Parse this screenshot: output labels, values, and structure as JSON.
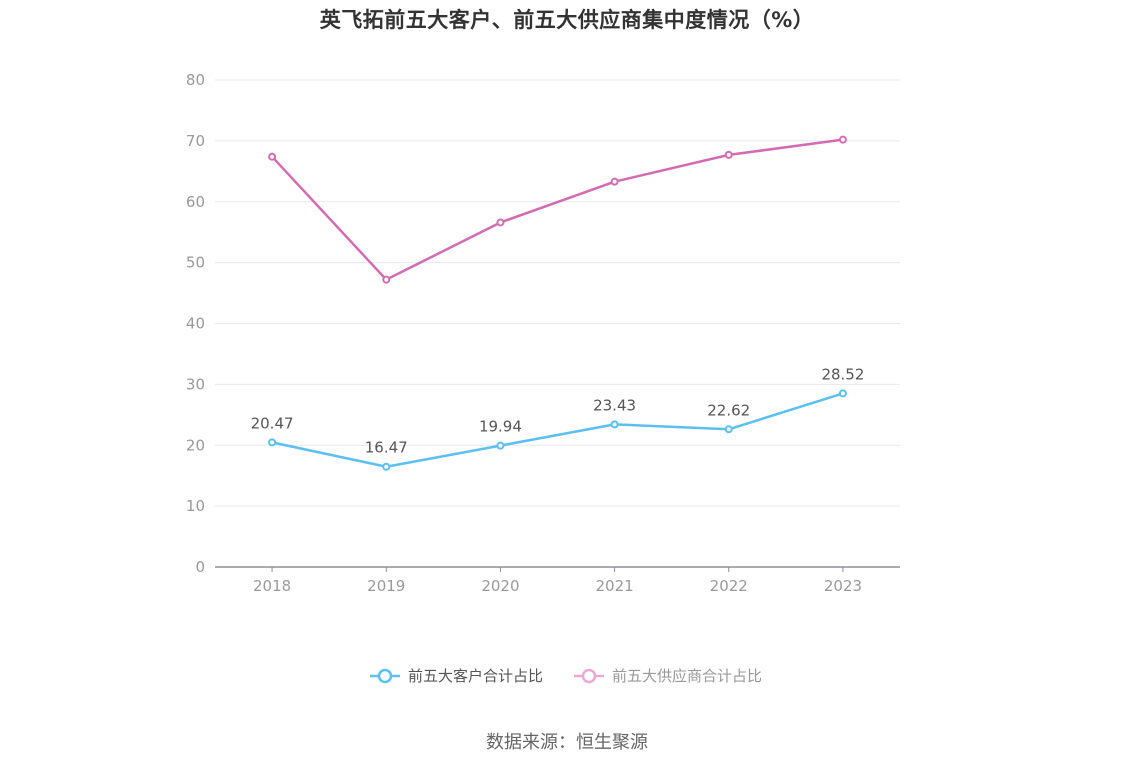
{
  "chart_data": {
    "type": "line",
    "title": "英飞拓前五大客户、前五大供应商集中度情况（%）",
    "categories": [
      "2018",
      "2019",
      "2020",
      "2021",
      "2022",
      "2023"
    ],
    "ylim": [
      0,
      80
    ],
    "yticks": [
      "0",
      "10",
      "20",
      "30",
      "40",
      "50",
      "60",
      "70",
      "80"
    ],
    "grid": true,
    "legend_position": "bottom-center",
    "series": [
      {
        "name": "前五大客户合计占比",
        "color": "#5bc0f0",
        "values": [
          20.47,
          16.47,
          19.94,
          23.43,
          22.62,
          28.52
        ],
        "labels": [
          "20.47",
          "16.47",
          "19.94",
          "23.43",
          "22.62",
          "28.52"
        ],
        "show_labels": true
      },
      {
        "name": "前五大供应商合计占比",
        "color": "#d36bb3",
        "legend_color": "#e9a9d4",
        "values": [
          67.4,
          47.2,
          56.6,
          63.3,
          67.7,
          70.2
        ],
        "show_labels": false
      }
    ]
  },
  "footer": {
    "source": "数据来源：恒生聚源"
  }
}
